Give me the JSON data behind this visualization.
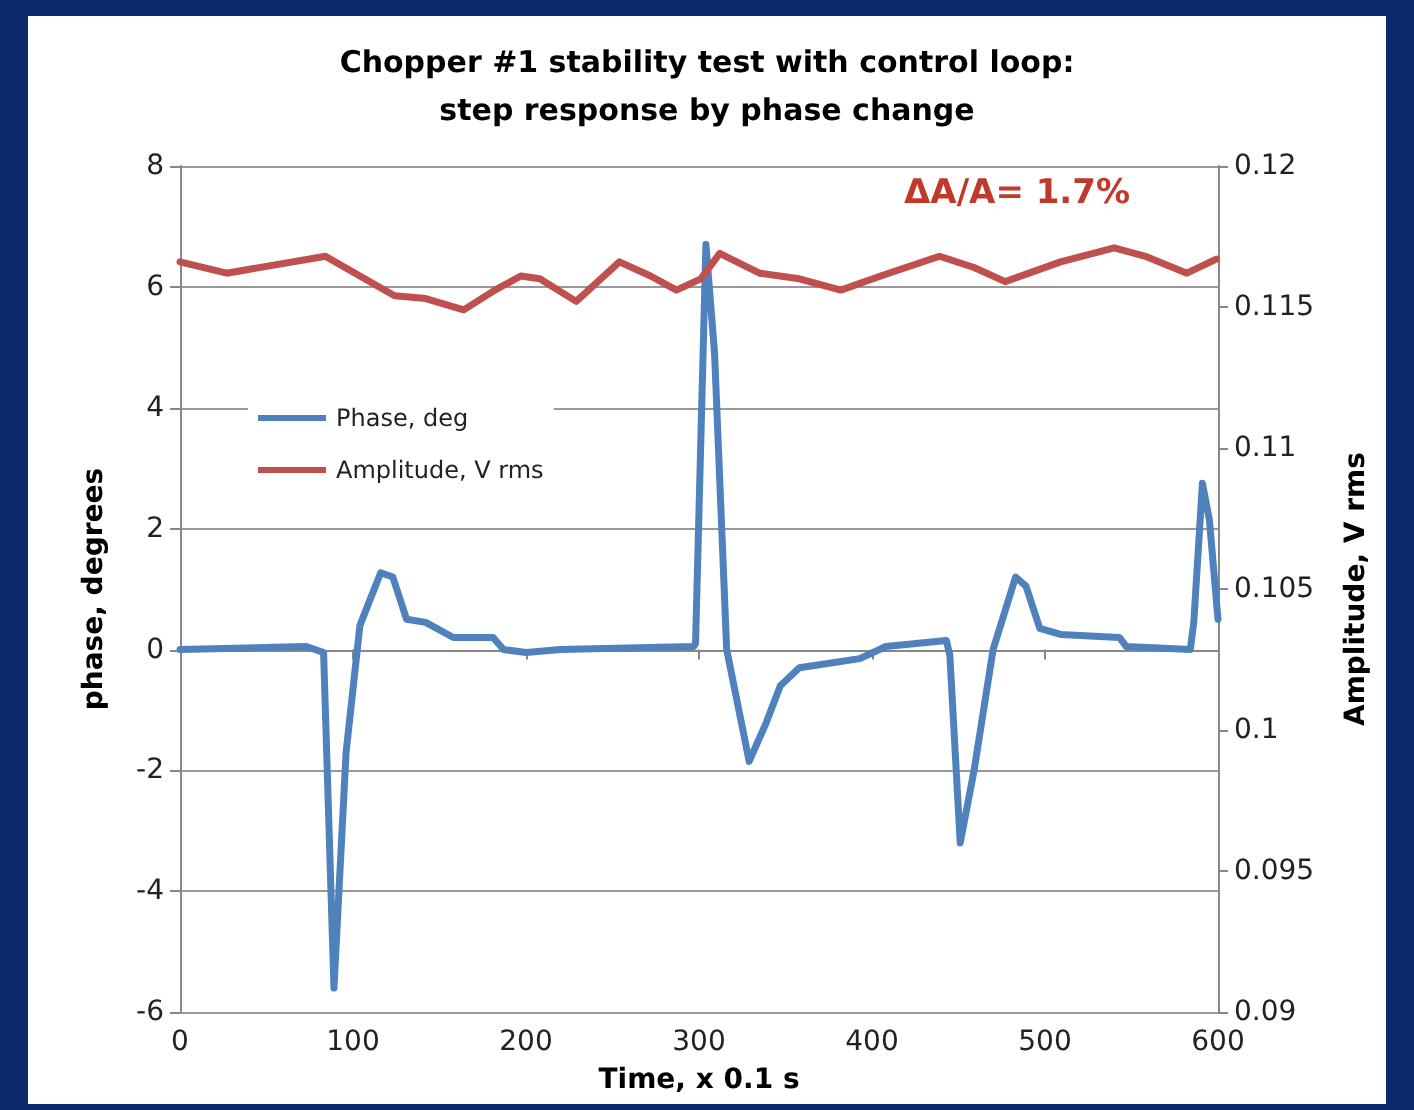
{
  "chart_data": {
    "type": "line",
    "title": "Chopper #1 stability test with control loop:\nstep response by phase change",
    "xlabel": "Time, x 0.1 s",
    "ylabel": "phase, degrees",
    "y2label": "Amplitude, V rms",
    "annotations": [
      "ΔA/A= 1.7%"
    ],
    "series": [
      {
        "name": "Phase, deg",
        "color": "#4f81bd",
        "x": [
          0,
          73,
          83,
          89,
          96,
          104,
          116,
          123,
          131,
          142,
          158,
          181,
          187,
          200,
          220,
          297,
          298,
          304,
          309,
          316,
          329,
          339,
          347,
          358,
          393,
          408,
          443,
          445,
          451,
          459,
          470,
          483,
          489,
          497,
          509,
          543,
          547,
          584,
          586,
          591,
          595,
          600
        ],
        "values": [
          0,
          0.05,
          -0.05,
          -5.6,
          -1.7,
          0.4,
          1.27,
          1.2,
          0.5,
          0.45,
          0.2,
          0.2,
          0,
          -0.05,
          0,
          0.05,
          0.1,
          6.7,
          4.9,
          0,
          -1.85,
          -1.2,
          -0.6,
          -0.3,
          -0.15,
          0.05,
          0.15,
          -0.1,
          -3.2,
          -2.0,
          0,
          1.2,
          1.05,
          0.35,
          0.25,
          0.2,
          0.05,
          0,
          0.45,
          2.75,
          2.15,
          0.5
        ]
      },
      {
        "name": "Amplitude, V rms",
        "color": "#c0504d",
        "axis": "y2",
        "x": [
          0,
          27,
          84,
          104,
          124,
          142,
          164,
          182,
          197,
          208,
          229,
          254,
          272,
          287,
          301,
          312,
          335,
          358,
          382,
          405,
          439,
          459,
          477,
          509,
          540,
          558,
          582,
          599
        ],
        "values": [
          0.1166,
          0.1162,
          0.1168,
          0.1161,
          0.1154,
          0.1153,
          0.1149,
          0.1156,
          0.1161,
          0.116,
          0.1152,
          0.1166,
          0.1161,
          0.1156,
          0.116,
          0.1169,
          0.1162,
          0.116,
          0.1156,
          0.1161,
          0.1168,
          0.1164,
          0.1159,
          0.1166,
          0.1171,
          0.1168,
          0.1162,
          0.1167
        ]
      }
    ],
    "xlim": [
      0,
      600
    ],
    "xticks": [
      0,
      100,
      200,
      300,
      400,
      500,
      600
    ],
    "ylim": [
      -6,
      8
    ],
    "yticks": [
      -6,
      -4,
      -2,
      0,
      2,
      4,
      6,
      8
    ],
    "y2lim": [
      0.09,
      0.12
    ],
    "y2ticks": [
      0.09,
      0.095,
      0.1,
      0.105,
      0.11,
      0.115,
      0.12
    ],
    "grid": "y",
    "legend": "left",
    "marker": "none",
    "line_style": "solid"
  }
}
